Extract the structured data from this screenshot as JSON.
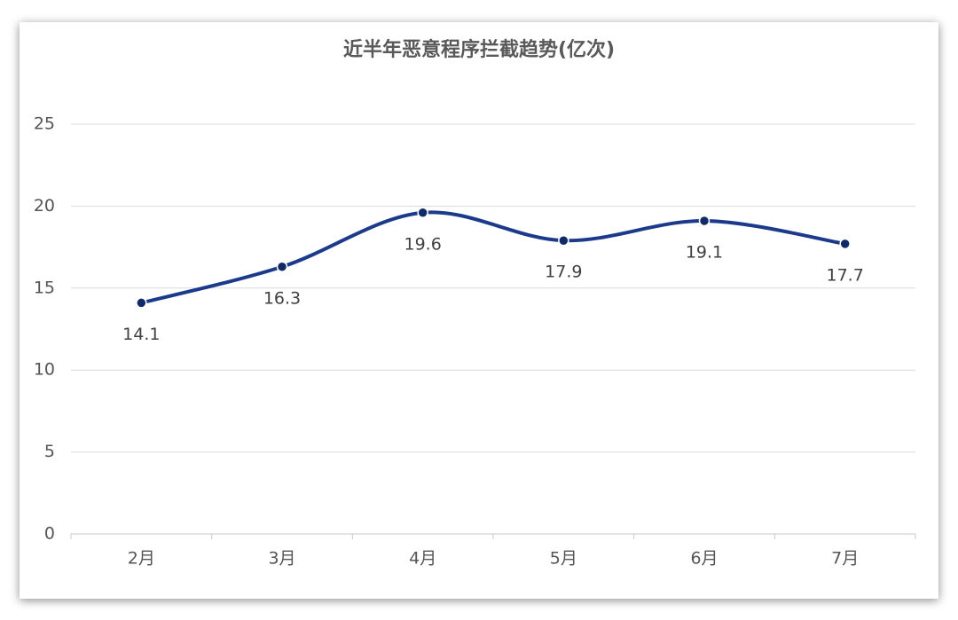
{
  "chart_data": {
    "type": "line",
    "title": "近半年恶意程序拦截趋势(亿次)",
    "categories": [
      "2月",
      "3月",
      "4月",
      "5月",
      "6月",
      "7月"
    ],
    "values": [
      14.1,
      16.3,
      19.6,
      17.9,
      19.1,
      17.7
    ],
    "color": "#1c3a8c",
    "smooth": true,
    "ylim": [
      0,
      25
    ],
    "yticks": [
      0,
      5,
      10,
      15,
      20,
      25
    ],
    "grid": true
  }
}
